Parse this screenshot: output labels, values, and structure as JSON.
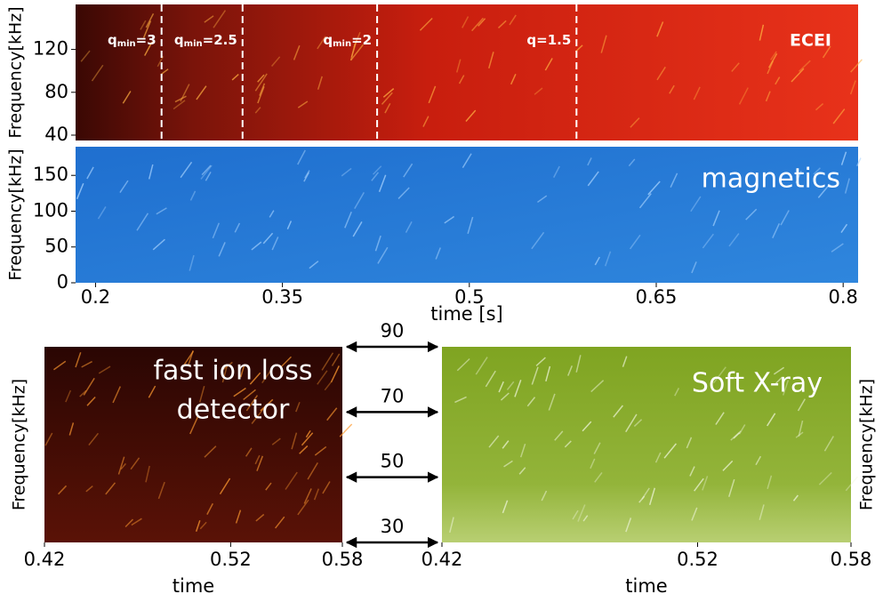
{
  "chart_data": [
    {
      "type": "heatmap",
      "label": "ECEI",
      "ylabel": "Frequency[kHz]",
      "xlim": [
        0.184,
        0.812
      ],
      "ylim": [
        35,
        162
      ],
      "yticks": [
        40,
        80,
        120
      ],
      "annotations": [
        {
          "x": 0.253,
          "q": "q",
          "sub": "min",
          "text": "=3"
        },
        {
          "x": 0.318,
          "q": "q",
          "sub": "min",
          "text": "=2.5"
        },
        {
          "x": 0.426,
          "q": "q",
          "sub": "min",
          "text": "=2"
        },
        {
          "x": 0.586,
          "q": "q",
          "text": "=1.5"
        }
      ]
    },
    {
      "type": "heatmap",
      "label": "magnetics",
      "ylabel": "Frequency[kHz]",
      "xlabel": "time [s]",
      "xlim": [
        0.184,
        0.812
      ],
      "xticks": [
        0.2,
        0.35,
        0.5,
        0.65,
        0.8
      ],
      "ylim": [
        0,
        190
      ],
      "yticks": [
        0,
        50,
        100,
        150
      ]
    },
    {
      "type": "heatmap",
      "label": [
        "fast ion loss",
        "detector"
      ],
      "ylabel": "Frequency[kHz]",
      "xlabel": "time",
      "xlim": [
        0.42,
        0.58
      ],
      "xticks": [
        0.42,
        0.52,
        0.58
      ],
      "ylim": [
        30,
        90
      ],
      "yticks": [
        90,
        70,
        50,
        30
      ]
    },
    {
      "type": "heatmap",
      "label": "Soft X-ray",
      "ylabel": "Frequency[kHz]",
      "xlabel": "time",
      "xlim": [
        0.42,
        0.58
      ],
      "xticks": [
        0.42,
        0.52,
        0.58
      ],
      "ylim": [
        30,
        90
      ]
    }
  ]
}
